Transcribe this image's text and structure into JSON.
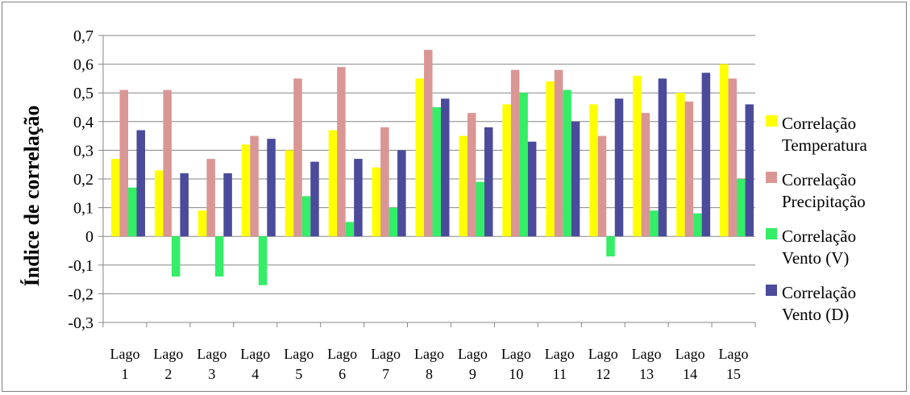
{
  "chart_data": {
    "type": "bar",
    "title": "",
    "xlabel": "",
    "ylabel": "Índice de correlação",
    "ylim": [
      -0.3,
      0.7
    ],
    "ytick_step": 0.1,
    "yticks": [
      "0,7",
      "0,6",
      "0,5",
      "0,4",
      "0,3",
      "0,2",
      "0,1",
      "0",
      "-0,1",
      "-0,2",
      "-0,3"
    ],
    "grid": true,
    "legend_position": "right",
    "categories": [
      [
        "Lago",
        "1"
      ],
      [
        "Lago",
        "2"
      ],
      [
        "Lago",
        "3"
      ],
      [
        "Lago",
        "4"
      ],
      [
        "Lago",
        "5"
      ],
      [
        "Lago",
        "6"
      ],
      [
        "Lago",
        "7"
      ],
      [
        "Lago",
        "8"
      ],
      [
        "Lago",
        "9"
      ],
      [
        "Lago",
        "10"
      ],
      [
        "Lago",
        "11"
      ],
      [
        "Lago",
        "12"
      ],
      [
        "Lago",
        "13"
      ],
      [
        "Lago",
        "14"
      ],
      [
        "Lago",
        "15"
      ]
    ],
    "series": [
      {
        "name": [
          "Correlação",
          "Temperatura"
        ],
        "color": "#ffff00",
        "values": [
          0.27,
          0.23,
          0.09,
          0.32,
          0.3,
          0.37,
          0.24,
          0.55,
          0.35,
          0.46,
          0.54,
          0.46,
          0.56,
          0.5,
          0.6
        ]
      },
      {
        "name": [
          "Correlação",
          "Precipitação"
        ],
        "color": "#d99694",
        "values": [
          0.51,
          0.51,
          0.27,
          0.35,
          0.55,
          0.59,
          0.38,
          0.65,
          0.43,
          0.58,
          0.58,
          0.35,
          0.43,
          0.47,
          0.55
        ]
      },
      {
        "name": [
          "Correlação",
          "Vento (V)"
        ],
        "color": "#33ee66",
        "values": [
          0.17,
          -0.14,
          -0.14,
          -0.17,
          0.14,
          0.05,
          0.1,
          0.45,
          0.19,
          0.5,
          0.51,
          -0.07,
          0.09,
          0.08,
          0.2
        ]
      },
      {
        "name": [
          "Correlação",
          "Vento (D)"
        ],
        "color": "#4b4b9c",
        "values": [
          0.37,
          0.22,
          0.22,
          0.34,
          0.26,
          0.27,
          0.3,
          0.48,
          0.38,
          0.33,
          0.4,
          0.48,
          0.55,
          0.57,
          0.46
        ]
      }
    ]
  }
}
